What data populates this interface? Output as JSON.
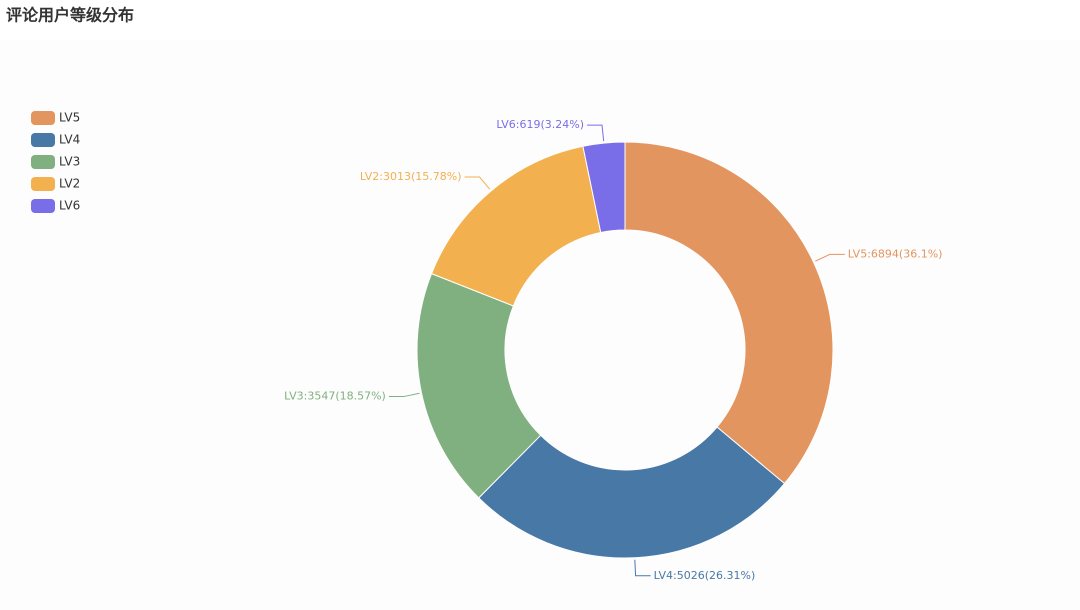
{
  "chart_data": {
    "type": "donut",
    "title": "评论用户等级分布",
    "categories": [
      "LV5",
      "LV4",
      "LV3",
      "LV2",
      "LV6"
    ],
    "values": [
      6894,
      5026,
      3547,
      3013,
      619
    ],
    "value_labels": [
      "LV5:6894(36.1%)",
      "LV4:5026(26.31%)",
      "LV3:3547(18.57%)",
      "LV2:3013(15.78%)",
      "LV6:619(3.24%)"
    ],
    "colors": [
      "#e3955f",
      "#4878a6",
      "#80b080",
      "#f3b04f",
      "#7a6de8"
    ],
    "legend": "top-left"
  }
}
